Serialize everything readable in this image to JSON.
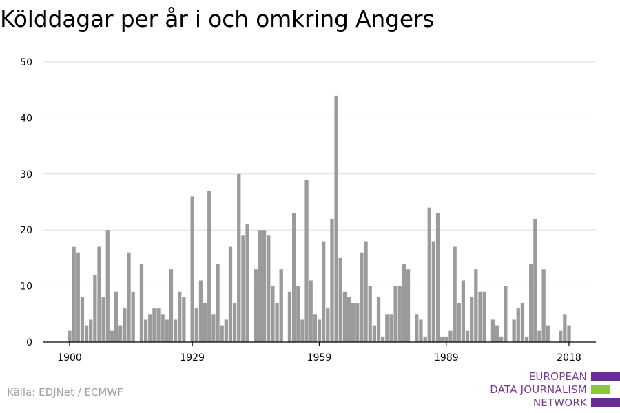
{
  "title": "Kölddagar per år i och omkring Angers",
  "source": "Källa: EDJNet / ECMWF",
  "logo": {
    "line1": "EUROPEAN",
    "line2": "DATA JOURNALISM",
    "line3": "NETWORK",
    "colors": {
      "purple": "#6b2c91",
      "green": "#8dc63f"
    }
  },
  "chart_data": {
    "type": "bar",
    "title": "Kölddagar per år i och omkring Angers",
    "xlabel": "",
    "ylabel": "",
    "bar_color": "#9b9b9b",
    "ylim": [
      0,
      50
    ],
    "yticks": [
      0,
      10,
      20,
      30,
      40,
      50
    ],
    "xlim": [
      1893,
      2024
    ],
    "xticks": [
      1900,
      1929,
      1959,
      1989,
      2018
    ],
    "grid": true,
    "x": [
      1900,
      1901,
      1902,
      1903,
      1904,
      1905,
      1906,
      1907,
      1908,
      1909,
      1910,
      1911,
      1912,
      1913,
      1914,
      1915,
      1916,
      1917,
      1918,
      1919,
      1920,
      1921,
      1922,
      1923,
      1924,
      1925,
      1926,
      1927,
      1928,
      1929,
      1930,
      1931,
      1932,
      1933,
      1934,
      1935,
      1936,
      1937,
      1938,
      1939,
      1940,
      1941,
      1942,
      1943,
      1944,
      1945,
      1946,
      1947,
      1948,
      1949,
      1950,
      1951,
      1952,
      1953,
      1954,
      1955,
      1956,
      1957,
      1958,
      1959,
      1960,
      1961,
      1962,
      1963,
      1964,
      1965,
      1966,
      1967,
      1968,
      1969,
      1970,
      1971,
      1972,
      1973,
      1974,
      1975,
      1976,
      1977,
      1978,
      1979,
      1980,
      1981,
      1982,
      1983,
      1984,
      1985,
      1986,
      1987,
      1988,
      1989,
      1990,
      1991,
      1992,
      1993,
      1994,
      1995,
      1996,
      1997,
      1998,
      1999,
      2000,
      2001,
      2002,
      2003,
      2004,
      2005,
      2006,
      2007,
      2008,
      2009,
      2010,
      2011,
      2012,
      2013,
      2014,
      2015,
      2016,
      2017,
      2018,
      2019
    ],
    "values": [
      2,
      17,
      16,
      8,
      3,
      4,
      12,
      17,
      8,
      20,
      2,
      9,
      3,
      6,
      16,
      9,
      0,
      14,
      4,
      5,
      6,
      6,
      5,
      4,
      13,
      4,
      9,
      8,
      0,
      26,
      6,
      11,
      7,
      27,
      5,
      14,
      3,
      4,
      17,
      7,
      30,
      19,
      21,
      0,
      13,
      20,
      20,
      19,
      10,
      7,
      13,
      0,
      9,
      23,
      10,
      4,
      29,
      11,
      5,
      4,
      18,
      6,
      22,
      44,
      15,
      9,
      8,
      7,
      7,
      16,
      18,
      10,
      3,
      8,
      1,
      5,
      5,
      10,
      10,
      14,
      13,
      0,
      5,
      4,
      1,
      24,
      18,
      23,
      1,
      1,
      2,
      17,
      7,
      11,
      2,
      8,
      13,
      9,
      9,
      0,
      4,
      3,
      1,
      10,
      0,
      4,
      6,
      7,
      1,
      14,
      22,
      2,
      13,
      3,
      0,
      0,
      2,
      5,
      3,
      0
    ]
  }
}
